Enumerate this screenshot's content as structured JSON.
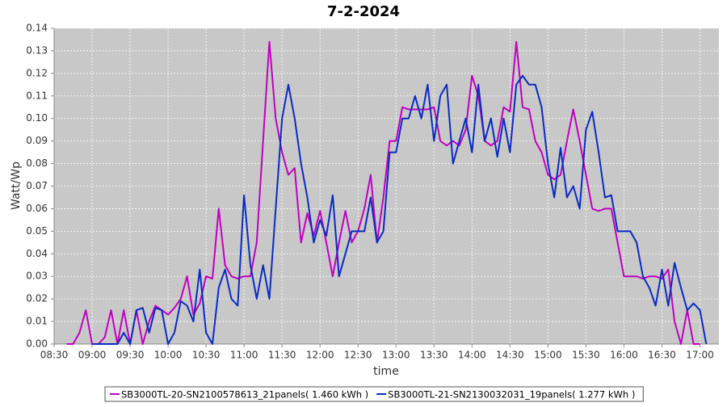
{
  "chart_data": {
    "type": "line",
    "title": "7-2-2024",
    "x_label": "time",
    "y_label": "Watt/Wp",
    "x": [
      "08:40",
      "08:45",
      "08:50",
      "08:55",
      "09:00",
      "09:05",
      "09:10",
      "09:15",
      "09:20",
      "09:25",
      "09:30",
      "09:35",
      "09:40",
      "09:45",
      "09:50",
      "09:55",
      "10:00",
      "10:05",
      "10:10",
      "10:15",
      "10:20",
      "10:25",
      "10:30",
      "10:35",
      "10:40",
      "10:45",
      "10:50",
      "10:55",
      "11:00",
      "11:05",
      "11:10",
      "11:15",
      "11:20",
      "11:25",
      "11:30",
      "11:35",
      "11:40",
      "11:45",
      "11:50",
      "11:55",
      "12:00",
      "12:05",
      "12:10",
      "12:15",
      "12:20",
      "12:25",
      "12:30",
      "12:35",
      "12:40",
      "12:45",
      "12:50",
      "12:55",
      "13:00",
      "13:05",
      "13:10",
      "13:15",
      "13:20",
      "13:25",
      "13:30",
      "13:35",
      "13:40",
      "13:45",
      "13:50",
      "13:55",
      "14:00",
      "14:05",
      "14:10",
      "14:15",
      "14:20",
      "14:25",
      "14:30",
      "14:35",
      "14:40",
      "14:45",
      "14:50",
      "14:55",
      "15:00",
      "15:05",
      "15:10",
      "15:15",
      "15:20",
      "15:25",
      "15:30",
      "15:35",
      "15:40",
      "15:45",
      "15:50",
      "15:55",
      "16:00",
      "16:05",
      "16:10",
      "16:15",
      "16:20",
      "16:25",
      "16:30",
      "16:35",
      "16:40",
      "16:45",
      "16:50",
      "16:55",
      "17:00",
      "17:05"
    ],
    "series": [
      {
        "name": "SB3000TL-20-SN2100578613_21panels( 1.460 kWh )",
        "color": "#c000c0",
        "values": [
          0,
          0,
          0.005,
          0.015,
          0,
          0,
          0.003,
          0.015,
          0,
          0.015,
          0,
          0.015,
          0,
          0.01,
          0.017,
          0.015,
          0.013,
          0.016,
          0.02,
          0.03,
          0.013,
          0.018,
          0.03,
          0.029,
          0.06,
          0.035,
          0.03,
          0.029,
          0.03,
          0.03,
          0.045,
          0.09,
          0.134,
          0.1,
          0.085,
          0.075,
          0.078,
          0.045,
          0.058,
          0.048,
          0.059,
          0.045,
          0.03,
          0.045,
          0.059,
          0.045,
          0.05,
          0.06,
          0.075,
          0.045,
          0.065,
          0.09,
          0.09,
          0.105,
          0.104,
          0.104,
          0.104,
          0.104,
          0.105,
          0.09,
          0.088,
          0.09,
          0.088,
          0.095,
          0.119,
          0.11,
          0.09,
          0.088,
          0.09,
          0.105,
          0.103,
          0.134,
          0.105,
          0.104,
          0.09,
          0.085,
          0.075,
          0.073,
          0.075,
          0.09,
          0.104,
          0.09,
          0.075,
          0.06,
          0.059,
          0.06,
          0.06,
          0.045,
          0.03,
          0.03,
          0.03,
          0.029,
          0.03,
          0.03,
          0.029,
          0.033,
          0.01,
          0,
          0.015,
          0,
          0,
          null
        ]
      },
      {
        "name": "SB3000TL-21-SN2130032031_19panels( 1.277 kWh )",
        "color": "#0a2bc0",
        "values": [
          null,
          null,
          null,
          null,
          0,
          0,
          0,
          0,
          0,
          0.005,
          0,
          0.015,
          0.016,
          0.005,
          0.016,
          0.015,
          0,
          0.005,
          0.019,
          0.017,
          0.01,
          0.033,
          0.005,
          0,
          0.025,
          0.033,
          0.02,
          0.017,
          0.066,
          0.035,
          0.02,
          0.035,
          0.02,
          0.06,
          0.1,
          0.115,
          0.1,
          0.08,
          0.065,
          0.045,
          0.055,
          0.048,
          0.066,
          0.03,
          0.04,
          0.05,
          0.05,
          0.05,
          0.065,
          0.045,
          0.05,
          0.085,
          0.085,
          0.1,
          0.1,
          0.11,
          0.1,
          0.115,
          0.09,
          0.11,
          0.115,
          0.08,
          0.09,
          0.1,
          0.085,
          0.115,
          0.09,
          0.1,
          0.083,
          0.1,
          0.085,
          0.115,
          0.119,
          0.115,
          0.115,
          0.105,
          0.08,
          0.065,
          0.087,
          0.065,
          0.07,
          0.06,
          0.095,
          0.103,
          0.085,
          0.065,
          0.066,
          0.05,
          0.05,
          0.05,
          0.045,
          0.03,
          0.025,
          0.017,
          0.033,
          0.017,
          0.036,
          0.025,
          0.015,
          0.018,
          0.015,
          0
        ]
      }
    ],
    "xlim": [
      "08:30",
      "17:15"
    ],
    "xticks": [
      "08:30",
      "09:00",
      "09:30",
      "10:00",
      "10:30",
      "11:00",
      "11:30",
      "12:00",
      "12:30",
      "13:00",
      "13:30",
      "14:00",
      "14:30",
      "15:00",
      "15:30",
      "16:00",
      "16:30",
      "17:00"
    ],
    "ylim": [
      0,
      0.14
    ],
    "yticks": [
      {
        "value": 0,
        "label": "0.00"
      },
      0.01,
      0.02,
      0.03,
      0.04,
      0.05,
      0.06,
      0.07,
      0.08,
      0.09,
      {
        "value": 0.1,
        "label": "0.10"
      },
      0.11,
      0.12,
      0.13,
      0.14
    ],
    "grid": true,
    "legend": "bottom"
  }
}
